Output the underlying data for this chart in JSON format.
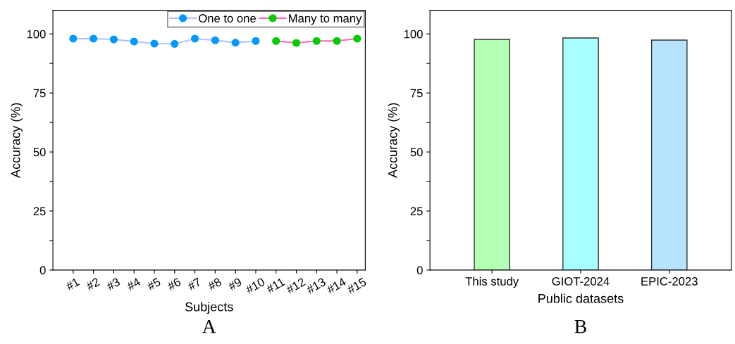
{
  "chart_data": [
    {
      "type": "line",
      "xlabel": "Subjects",
      "ylabel": "Accuracy (%)",
      "categories": [
        "#1",
        "#2",
        "#3",
        "#4",
        "#5",
        "#6",
        "#7",
        "#8",
        "#9",
        "#10",
        "#11",
        "#12",
        "#13",
        "#14",
        "#15"
      ],
      "series": [
        {
          "name": "One to one",
          "color": "#b3c0ff",
          "colors": [
            "#0099ff",
            "#0099ff",
            "#0099ff",
            "#0099ff",
            "#0099ff",
            "#0099ff",
            "#0099ff",
            "#0099ff",
            "#0099ff",
            "#0099ff",
            null,
            null,
            null,
            null,
            null
          ],
          "values": [
            98.0,
            98.0,
            97.7,
            96.8,
            95.9,
            95.8,
            98.0,
            97.3,
            96.3,
            97.0,
            null,
            null,
            null,
            null,
            null
          ]
        },
        {
          "name": "Many to many",
          "color": "#ff66b3",
          "colors": [
            null,
            null,
            null,
            null,
            null,
            null,
            null,
            null,
            null,
            null,
            "#00cc00",
            "#00cc00",
            "#00cc00",
            "#00cc00",
            "#00cc00"
          ],
          "values": [
            null,
            null,
            null,
            null,
            null,
            null,
            null,
            null,
            null,
            null,
            97.0,
            96.2,
            97.0,
            97.0,
            98.0
          ]
        }
      ],
      "ylim": [
        0,
        110
      ],
      "yticks": [
        0,
        {
          "value": 12.5,
          "label": null
        },
        25,
        {
          "value": 37.5,
          "label": null
        },
        50,
        {
          "value": 62.5,
          "label": null
        },
        75,
        {
          "value": 87.5,
          "label": null
        },
        100
      ],
      "marker": "circle",
      "line_style": "solid",
      "legend": "top right",
      "grid": false,
      "annotations": [
        "A"
      ]
    },
    {
      "type": "bar",
      "xlabel": "Public datasets",
      "ylabel": "Accuracy (%)",
      "categories": [
        "This study",
        "GIOT-2024",
        "EPIC-2023"
      ],
      "values": [
        97.7,
        98.3,
        97.4
      ],
      "colors": [
        "#b3ffb3",
        "#a8ffff",
        "#b8e3ff"
      ],
      "ylim": [
        0,
        110
      ],
      "yticks": [
        0,
        {
          "value": 12.5,
          "label": null
        },
        25,
        {
          "value": 37.5,
          "label": null
        },
        50,
        {
          "value": 62.5,
          "label": null
        },
        75,
        {
          "value": 87.5,
          "label": null
        },
        100
      ],
      "grid": false,
      "annotations": [
        "B"
      ]
    }
  ]
}
